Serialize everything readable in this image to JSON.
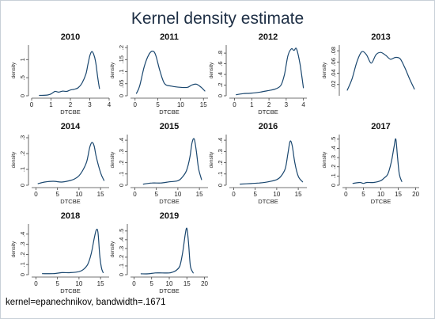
{
  "title": "Kernel density estimate",
  "note": "kernel=epanechnikov, bandwidth=.1671",
  "chart_data": [
    {
      "type": "line",
      "title": "2010",
      "xlabel": "DTCBE",
      "ylabel": "density",
      "xlim": [
        0,
        4
      ],
      "ylim": [
        0,
        1.4
      ],
      "xticks": [
        0,
        1,
        2,
        3,
        4
      ],
      "xtick_labels": [
        "0",
        "1",
        "2",
        "3",
        "4"
      ],
      "yticks": [
        0,
        0.5,
        1
      ],
      "ytick_labels": [
        "0",
        ".5",
        "1"
      ],
      "x": [
        0.4,
        0.8,
        1.0,
        1.2,
        1.4,
        1.6,
        1.8,
        2.0,
        2.2,
        2.4,
        2.6,
        2.8,
        2.9,
        3.0,
        3.1,
        3.2,
        3.3,
        3.4,
        3.5
      ],
      "y": [
        0.01,
        0.02,
        0.05,
        0.12,
        0.1,
        0.13,
        0.12,
        0.16,
        0.18,
        0.22,
        0.35,
        0.6,
        0.85,
        1.1,
        1.22,
        1.15,
        0.95,
        0.55,
        0.2
      ]
    },
    {
      "type": "line",
      "title": "2011",
      "xlabel": "DTCBE",
      "ylabel": "density",
      "xlim": [
        -1,
        16
      ],
      "ylim": [
        0,
        0.21
      ],
      "xticks": [
        0,
        5,
        10,
        15
      ],
      "xtick_labels": [
        "0",
        "5",
        "10",
        "15"
      ],
      "yticks": [
        0,
        0.05,
        0.1,
        0.15,
        0.2
      ],
      "ytick_labels": [
        "0",
        ".05",
        ".1",
        ".15",
        ".2"
      ],
      "x": [
        0.3,
        1,
        2,
        3,
        3.8,
        4.5,
        5.5,
        6.5,
        8,
        10,
        11.5,
        12.5,
        13.5,
        14.5,
        15.3
      ],
      "y": [
        0.01,
        0.04,
        0.12,
        0.17,
        0.185,
        0.17,
        0.1,
        0.05,
        0.04,
        0.035,
        0.035,
        0.045,
        0.048,
        0.035,
        0.02
      ]
    },
    {
      "type": "line",
      "title": "2012",
      "xlabel": "DTCBE",
      "ylabel": "density",
      "xlim": [
        -0.3,
        4.2
      ],
      "ylim": [
        0,
        0.95
      ],
      "xticks": [
        0,
        1,
        2,
        3,
        4
      ],
      "xtick_labels": [
        "0",
        "1",
        "2",
        "3",
        "4"
      ],
      "yticks": [
        0,
        0.2,
        0.4,
        0.6,
        0.8
      ],
      "ytick_labels": [
        "0",
        ".2",
        ".4",
        ".6",
        ".8"
      ],
      "x": [
        0.1,
        0.5,
        1.0,
        1.5,
        2.0,
        2.4,
        2.7,
        2.9,
        3.1,
        3.3,
        3.45,
        3.6,
        3.8,
        4.0
      ],
      "y": [
        0.02,
        0.04,
        0.05,
        0.07,
        0.1,
        0.13,
        0.2,
        0.4,
        0.75,
        0.88,
        0.85,
        0.88,
        0.6,
        0.15
      ]
    },
    {
      "type": "line",
      "title": "2013",
      "xlabel": "",
      "ylabel": "density",
      "xlim": [
        0,
        16
      ],
      "ylim": [
        0,
        0.09
      ],
      "xticks": [],
      "xtick_labels": [],
      "yticks": [
        0.02,
        0.04,
        0.06,
        0.08
      ],
      "ytick_labels": [
        ".02",
        ".04",
        ".06",
        ".08"
      ],
      "x": [
        1,
        2,
        3,
        4,
        5,
        6,
        7,
        8,
        9,
        10,
        11,
        12,
        13,
        14,
        15
      ],
      "y": [
        0.01,
        0.03,
        0.06,
        0.078,
        0.073,
        0.058,
        0.073,
        0.077,
        0.072,
        0.065,
        0.068,
        0.066,
        0.05,
        0.03,
        0.012
      ]
    },
    {
      "type": "line",
      "title": "2014",
      "xlabel": "DTCBE",
      "ylabel": "density",
      "xlim": [
        -1,
        17
      ],
      "ylim": [
        0,
        0.32
      ],
      "xticks": [
        0,
        5,
        10,
        15
      ],
      "xtick_labels": [
        "0",
        "5",
        "10",
        "15"
      ],
      "yticks": [
        0,
        0.1,
        0.2,
        0.3
      ],
      "ytick_labels": [
        "0",
        ".1",
        ".2",
        ".3"
      ],
      "x": [
        0.5,
        2,
        4,
        6,
        8,
        9,
        10,
        11,
        11.8,
        12.5,
        13,
        13.5,
        14,
        15,
        15.8
      ],
      "y": [
        0.01,
        0.02,
        0.025,
        0.02,
        0.03,
        0.04,
        0.06,
        0.1,
        0.15,
        0.24,
        0.27,
        0.25,
        0.18,
        0.08,
        0.03
      ]
    },
    {
      "type": "line",
      "title": "2015",
      "xlabel": "DTCBE",
      "ylabel": "density",
      "xlim": [
        -1,
        17
      ],
      "ylim": [
        0,
        0.45
      ],
      "xticks": [
        0,
        5,
        10,
        15
      ],
      "xtick_labels": [
        "0",
        "5",
        "10",
        "15"
      ],
      "yticks": [
        0,
        0.1,
        0.2,
        0.3,
        0.4
      ],
      "ytick_labels": [
        "0",
        ".1",
        ".2",
        ".3",
        ".4"
      ],
      "x": [
        2,
        4,
        6,
        8,
        10,
        11,
        12,
        12.8,
        13.3,
        13.8,
        14.3,
        14.8,
        15.5
      ],
      "y": [
        0.01,
        0.02,
        0.02,
        0.03,
        0.04,
        0.07,
        0.13,
        0.25,
        0.38,
        0.41,
        0.3,
        0.15,
        0.05
      ]
    },
    {
      "type": "line",
      "title": "2016",
      "xlabel": "DTCBE",
      "ylabel": "density",
      "xlim": [
        -1,
        17
      ],
      "ylim": [
        0,
        0.45
      ],
      "xticks": [
        0,
        5,
        10,
        15
      ],
      "xtick_labels": [
        "0",
        "5",
        "10",
        "15"
      ],
      "yticks": [
        0,
        0.1,
        0.2,
        0.3,
        0.4
      ],
      "ytick_labels": [
        "0",
        ".1",
        ".2",
        ".3",
        ".4"
      ],
      "x": [
        1.5,
        4,
        6,
        8,
        10,
        11,
        12,
        12.6,
        13.1,
        13.6,
        14.2,
        15,
        16
      ],
      "y": [
        0.01,
        0.015,
        0.02,
        0.03,
        0.05,
        0.08,
        0.15,
        0.28,
        0.39,
        0.35,
        0.2,
        0.08,
        0.03
      ]
    },
    {
      "type": "line",
      "title": "2017",
      "xlabel": "DTCBE",
      "ylabel": "density",
      "xlim": [
        -1,
        21
      ],
      "ylim": [
        0,
        0.55
      ],
      "xticks": [
        0,
        5,
        10,
        15,
        20
      ],
      "xtick_labels": [
        "0",
        "5",
        "10",
        "15",
        "20"
      ],
      "yticks": [
        0,
        0.1,
        0.2,
        0.3,
        0.4,
        0.5
      ],
      "ytick_labels": [
        "0",
        ".1",
        ".2",
        ".3",
        ".4",
        ".5"
      ],
      "x": [
        2,
        4,
        5,
        6,
        8,
        10,
        11,
        12,
        13,
        13.8,
        14.3,
        14.8,
        15.3,
        16
      ],
      "y": [
        0.02,
        0.03,
        0.02,
        0.03,
        0.03,
        0.05,
        0.08,
        0.12,
        0.25,
        0.42,
        0.5,
        0.3,
        0.12,
        0.04
      ]
    },
    {
      "type": "line",
      "title": "2018",
      "xlabel": "DTCBE",
      "ylabel": "density",
      "xlim": [
        -1,
        17
      ],
      "ylim": [
        0,
        0.5
      ],
      "xticks": [
        0,
        5,
        10,
        15
      ],
      "xtick_labels": [
        "0",
        "5",
        "10",
        "15"
      ],
      "yticks": [
        0,
        0.1,
        0.2,
        0.3,
        0.4
      ],
      "ytick_labels": [
        "0",
        ".1",
        ".2",
        ".3",
        ".4"
      ],
      "x": [
        1.5,
        4,
        6,
        8,
        10,
        11,
        12,
        12.8,
        13.5,
        14,
        14.4,
        14.8,
        15.2,
        15.6
      ],
      "y": [
        0.01,
        0.01,
        0.02,
        0.02,
        0.03,
        0.05,
        0.1,
        0.2,
        0.35,
        0.44,
        0.42,
        0.2,
        0.07,
        0.02
      ]
    },
    {
      "type": "line",
      "title": "2019",
      "xlabel": "DTCBE",
      "ylabel": "density",
      "xlim": [
        -1,
        21
      ],
      "ylim": [
        0,
        0.58
      ],
      "xticks": [
        0,
        5,
        10,
        15,
        20
      ],
      "xtick_labels": [
        "0",
        "5",
        "10",
        "15",
        "20"
      ],
      "yticks": [
        0,
        0.1,
        0.2,
        0.3,
        0.4,
        0.5
      ],
      "ytick_labels": [
        "0",
        ".1",
        ".2",
        ".3",
        ".4",
        ".5"
      ],
      "x": [
        2,
        4,
        6,
        8,
        10,
        11,
        12,
        13,
        13.8,
        14.5,
        15,
        15.5,
        16,
        16.8
      ],
      "y": [
        0.01,
        0.01,
        0.02,
        0.02,
        0.02,
        0.03,
        0.05,
        0.1,
        0.25,
        0.45,
        0.53,
        0.35,
        0.1,
        0.02
      ]
    }
  ]
}
